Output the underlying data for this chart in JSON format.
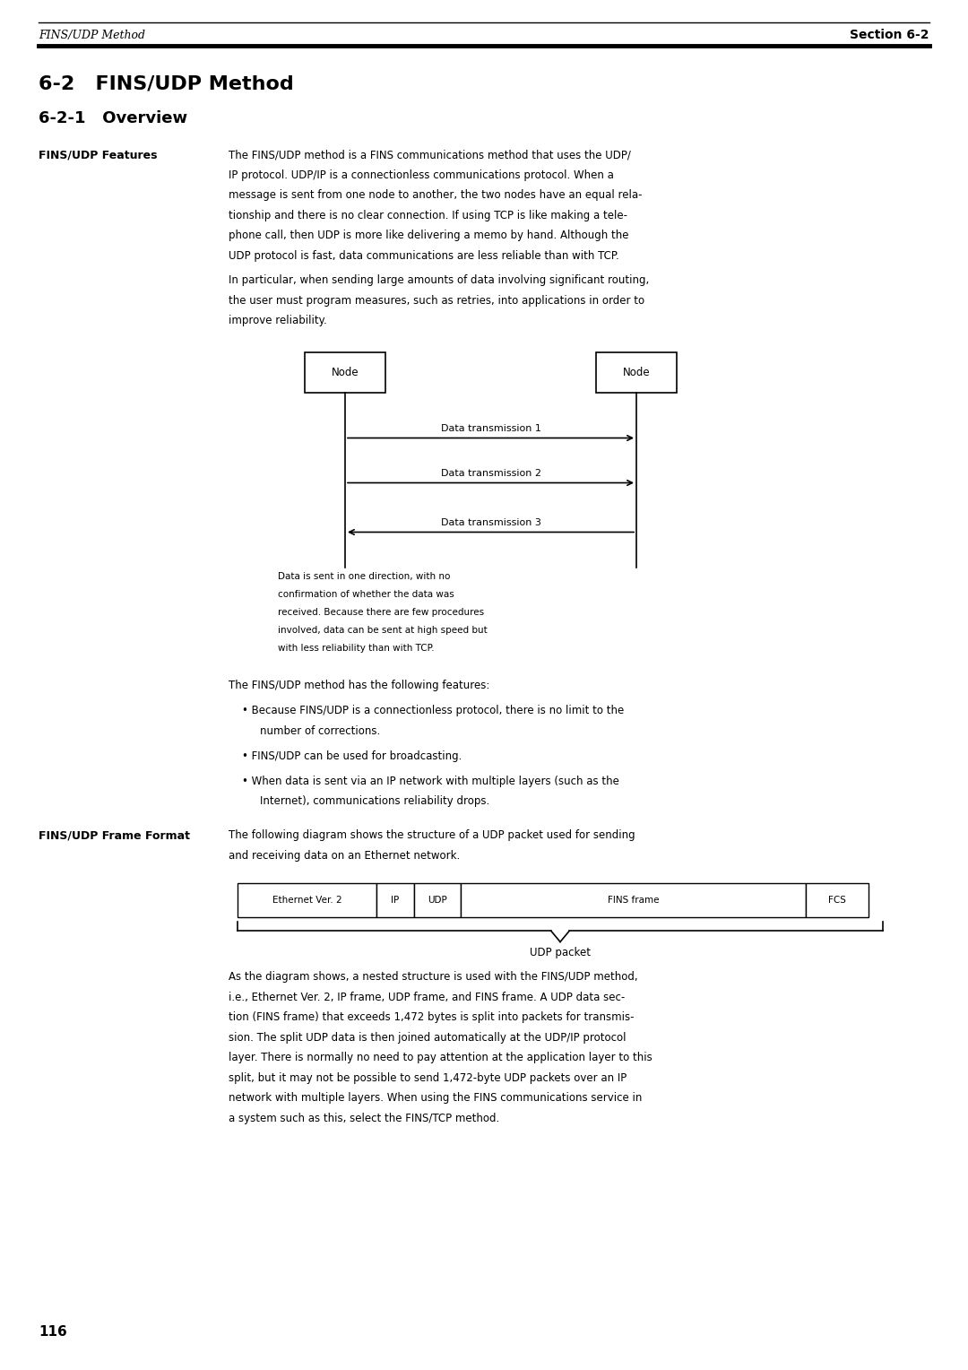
{
  "page_width": 10.8,
  "page_height": 15.28,
  "bg_color": "#ffffff",
  "header_left": "FINS/UDP Method",
  "header_right": "Section 6-2",
  "title_h2": "6-2   FINS/UDP Method",
  "title_h3": "6-2-1   Overview",
  "sidebar_label1": "FINS/UDP Features",
  "sidebar_label2": "FINS/UDP Frame Format",
  "body_text1": "The FINS/UDP method is a FINS communications method that uses the UDP/\nIP protocol. UDP/IP is a connectionless communications protocol. When a\nmessage is sent from one node to another, the two nodes have an equal rela-\ntionship and there is no clear connection. If using TCP is like making a tele-\nphone call, then UDP is more like delivering a memo by hand. Although the\nUDP protocol is fast, data communications are less reliable than with TCP.",
  "body_text2": "In particular, when sending large amounts of data involving significant routing,\nthe user must program measures, such as retries, into applications in order to\nimprove reliability.",
  "diagram_note": "Data is sent in one direction, with no\nconfirmation of whether the data was\nreceived. Because there are few procedures\ninvolved, data can be sent at high speed but\nwith less reliability than with TCP.",
  "features_intro": "The FINS/UDP method has the following features:",
  "feature1": "Because FINS/UDP is a connectionless protocol, there is no limit to the\nnumber of corrections.",
  "feature2": "FINS/UDP can be used for broadcasting.",
  "feature3": "When data is sent via an IP network with multiple layers (such as the\nInternet), communications reliability drops.",
  "frame_format_text": "The following diagram shows the structure of a UDP packet used for sending\nand receiving data on an Ethernet network.",
  "frame_cells": [
    "Ethernet Ver. 2",
    "IP",
    "UDP",
    "FINS frame",
    "FCS"
  ],
  "udp_packet_label": "UDP packet",
  "body_text3": "As the diagram shows, a nested structure is used with the FINS/UDP method,\ni.e., Ethernet Ver. 2, IP frame, UDP frame, and FINS frame. A UDP data sec-\ntion (FINS frame) that exceeds 1,472 bytes is split into packets for transmis-\nsion. The split UDP data is then joined automatically at the UDP/IP protocol\nlayer. There is normally no need to pay attention at the application layer to this\nsplit, but it may not be possible to send 1,472-byte UDP packets over an IP\nnetwork with multiple layers. When using the FINS communications service in\na system such as this, select the FINS/TCP method.",
  "page_number": "116",
  "node_label": "Node",
  "arrow1_label": "Data transmission 1",
  "arrow2_label": "Data transmission 2",
  "arrow3_label": "Data transmission 3"
}
